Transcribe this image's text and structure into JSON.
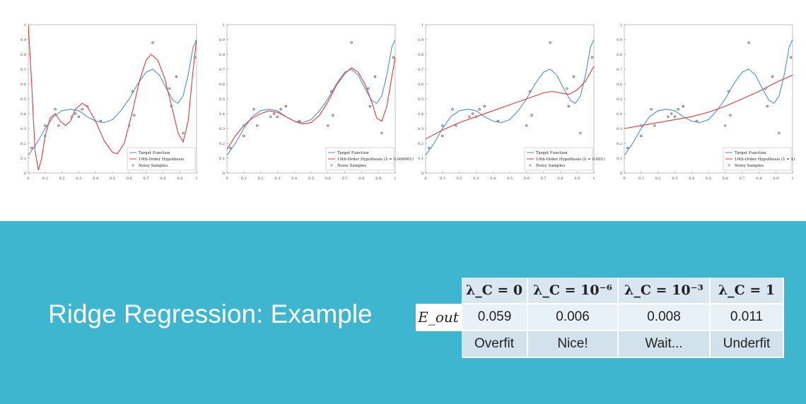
{
  "colors": {
    "banner": "#3fb6d0",
    "target": "#4a90c9",
    "hypothesis": "#e0383c",
    "samples": "#333333"
  },
  "title": "Ridge Regression: Example",
  "legend": {
    "target": "Target Function",
    "samples": "Noisy Samples"
  },
  "chart_data": [
    {
      "type": "line",
      "legend_hypothesis": "10th-Order Hypothesis",
      "lambda": "0"
    },
    {
      "type": "line",
      "legend_hypothesis": "10th-Order Hypothesis (λ = 0.000001)",
      "lambda": "0.000001"
    },
    {
      "type": "line",
      "legend_hypothesis": "10th-Order Hypothesis (λ = 0.001)",
      "lambda": "0.001"
    },
    {
      "type": "line",
      "legend_hypothesis": "10th-Order Hypothesis (λ = 1)",
      "lambda": "1"
    }
  ],
  "axes": {
    "xlim": [
      0,
      1
    ],
    "ylim": [
      0,
      1
    ],
    "xticks": [
      "0",
      "0.1",
      "0.2",
      "0.3",
      "0.4",
      "0.5",
      "0.6",
      "0.7",
      "0.8",
      "0.9",
      "1"
    ],
    "yticks": [
      "0",
      "0.1",
      "0.2",
      "0.3",
      "0.4",
      "0.5",
      "0.6",
      "0.7",
      "0.8",
      "0.9",
      "1"
    ]
  },
  "samples": [
    [
      0.02,
      0.17
    ],
    [
      0.1,
      0.25
    ],
    [
      0.1,
      0.32
    ],
    [
      0.16,
      0.43
    ],
    [
      0.18,
      0.32
    ],
    [
      0.26,
      0.38
    ],
    [
      0.28,
      0.4
    ],
    [
      0.3,
      0.38
    ],
    [
      0.32,
      0.43
    ],
    [
      0.35,
      0.45
    ],
    [
      0.43,
      0.35
    ],
    [
      0.6,
      0.32
    ],
    [
      0.62,
      0.55
    ],
    [
      0.63,
      0.39
    ],
    [
      0.74,
      0.88
    ],
    [
      0.84,
      0.57
    ],
    [
      0.85,
      0.45
    ],
    [
      0.88,
      0.65
    ],
    [
      0.92,
      0.27
    ],
    [
      0.99,
      0.78
    ]
  ],
  "table": {
    "headers": [
      "λ_C = 0",
      "λ_C = 10⁻⁶",
      "λ_C = 10⁻³",
      "λ_C = 1"
    ],
    "row_label": "E_out",
    "values": [
      "0.059",
      "0.006",
      "0.008",
      "0.011"
    ],
    "notes": [
      "Overfit",
      "Nice!",
      "Wait...",
      "Underfit"
    ]
  }
}
